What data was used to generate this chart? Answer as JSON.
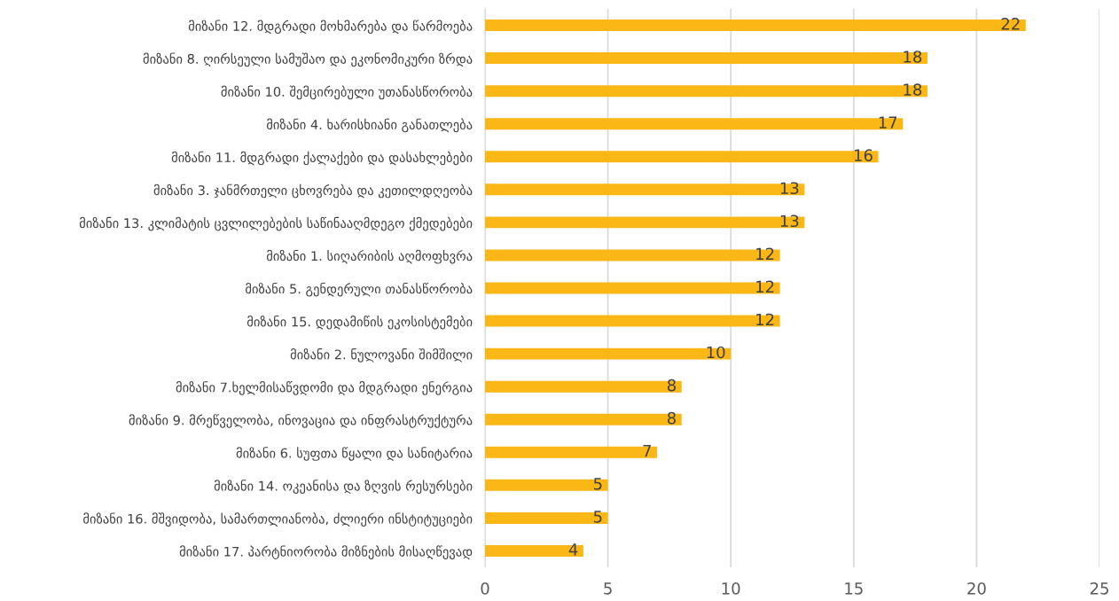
{
  "chart_data": {
    "type": "bar",
    "orientation": "horizontal",
    "categories": [
      "მიზანი 12. მდგრადი მოხმარება და წარმოება",
      "მიზანი 8. ღირსეული სამუშაო და ეკონომიკური ზრდა",
      "მიზანი 10. შემცირებული უთანასწორობა",
      "მიზანი 4. ხარისხიანი განათლება",
      "მიზანი 11. მდგრადი ქალაქები და დასახლებები",
      "მიზანი 3. ჯანმრთელი ცხოვრება და კეთილდღეობა",
      "მიზანი 13. კლიმატის ცვლილებების საწინააღმდეგო ქმედებები",
      "მიზანი 1. სიღარიბის აღმოფხვრა",
      "მიზანი 5. გენდერული თანასწორობა",
      "მიზანი 15. დედამიწის ეკოსისტემები",
      "მიზანი 2. ნულოვანი შიმშილი",
      "მიზანი 7.ხელმისაწვდომი და მდგრადი ენერგია",
      "მიზანი 9. მრეწველობა, ინოვაცია და ინფრასტრუქტურა",
      "მიზანი 6. სუფთა წყალი და სანიტარია",
      "მიზანი 14. ოკეანისა და ზღვის რესურსები",
      "მიზანი 16. მშვიდობა, სამართლიანობა, ძლიერი ინსტიტუციები",
      "მიზანი 17. პარტნიორობა მიზნების მისაღწევად"
    ],
    "values": [
      22,
      18,
      18,
      17,
      16,
      13,
      13,
      12,
      12,
      12,
      10,
      8,
      8,
      7,
      5,
      5,
      4
    ],
    "color": "#fbb716",
    "xlim": [
      0,
      25
    ],
    "xticks": [
      0,
      5,
      10,
      15,
      20,
      25
    ],
    "grid": "x",
    "data_labels": true
  }
}
